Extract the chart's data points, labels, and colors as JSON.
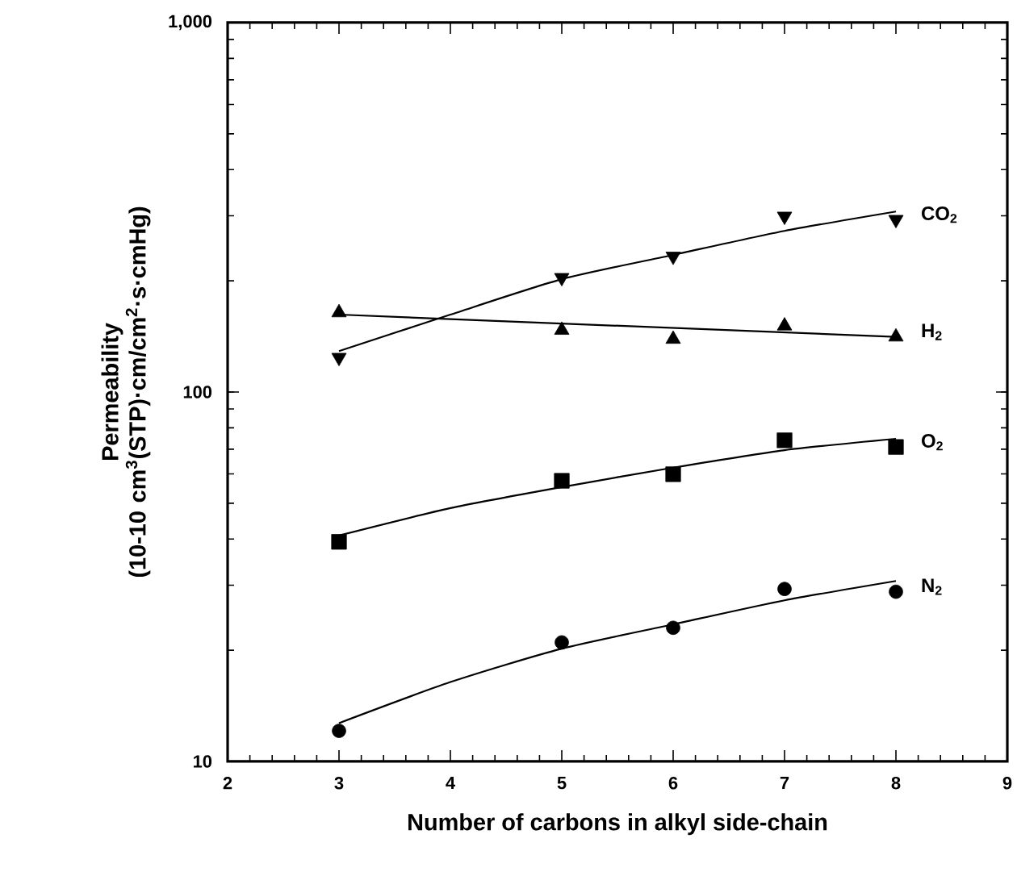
{
  "chart_data": {
    "type": "scatter",
    "xlabel": "Number of carbons in alkyl side-chain",
    "ylabel": "Permeability (10-10 cm$^{3}$(STP)·cm/cm$^{2}$·s·cmHg)",
    "log": "y",
    "xlim": [
      2,
      9
    ],
    "ylim": [
      10,
      1000
    ],
    "xticks": [
      2,
      3,
      4,
      5,
      6,
      7,
      8,
      9
    ],
    "yticks": [
      10,
      100,
      {
        "value": 1000,
        "label": "1,000"
      }
    ],
    "grid": false,
    "legend": "right",
    "color": "#000000",
    "series": [
      {
        "name": "CO$_{2}$",
        "type": "scatter",
        "marker": "triangle-down",
        "x": [
          3,
          5,
          6,
          7,
          8
        ],
        "values": [
          124,
          204,
          233,
          299,
          293
        ]
      },
      {
        "name": "H$_{2}$",
        "type": "scatter",
        "marker": "triangle",
        "x": [
          3,
          5,
          6,
          7,
          8
        ],
        "values": [
          164,
          147,
          139,
          151,
          141
        ]
      },
      {
        "name": "O$_{2}$",
        "type": "scatter",
        "marker": "square",
        "x": [
          3,
          5,
          6,
          7,
          8
        ],
        "values": [
          39.3,
          57.5,
          59.9,
          74,
          71
        ]
      },
      {
        "name": "N$_{2}$",
        "type": "scatter",
        "marker": "circle",
        "x": [
          3,
          5,
          6,
          7,
          8
        ],
        "values": [
          12.1,
          21.0,
          23.0,
          29.3,
          28.8
        ]
      },
      {
        "type": "line",
        "marker": "none",
        "x": [
          3,
          4,
          5,
          6,
          7,
          8
        ],
        "values": [
          129,
          162,
          202,
          235,
          273,
          308
        ]
      },
      {
        "type": "line",
        "marker": "none",
        "x": [
          3,
          8
        ],
        "values": [
          162,
          141
        ]
      },
      {
        "type": "line",
        "marker": "none",
        "x": [
          3,
          4,
          5,
          6,
          7,
          8
        ],
        "values": [
          40.9,
          48.5,
          55.3,
          62.4,
          69.6,
          74.7
        ]
      },
      {
        "type": "line",
        "marker": "none",
        "x": [
          3,
          4,
          5,
          6,
          7,
          8
        ],
        "values": [
          12.7,
          16.4,
          20.2,
          23.5,
          27.3,
          30.8
        ]
      }
    ]
  }
}
